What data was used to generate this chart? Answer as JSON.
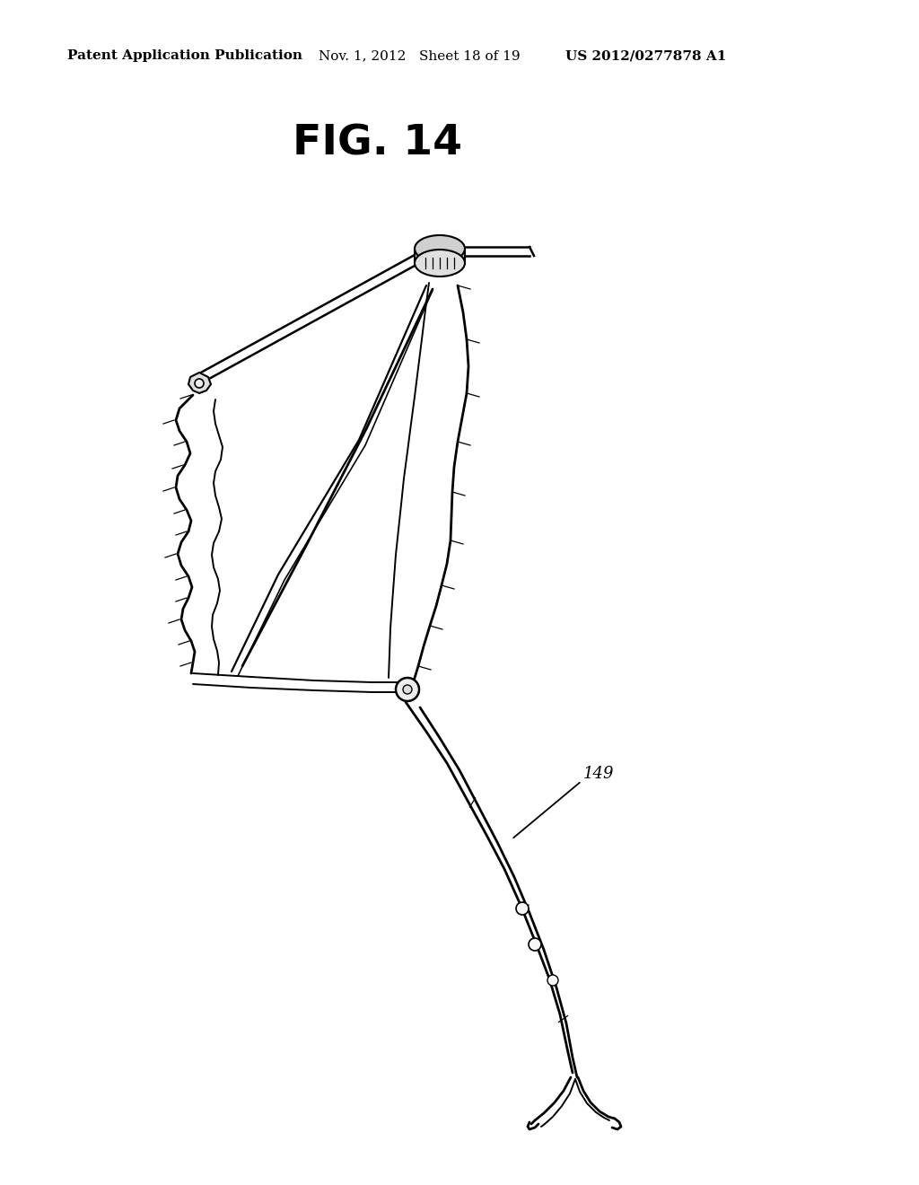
{
  "background_color": "#ffffff",
  "title_fig": "FIG. 14",
  "title_fontsize": 34,
  "header_left": "Patent Application Publication",
  "header_middle": "Nov. 1, 2012   Sheet 18 of 19",
  "header_right": "US 2012/0277878 A1",
  "header_fontsize": 11,
  "label_149": "149",
  "label_fontsize": 13,
  "line_color": "#000000"
}
